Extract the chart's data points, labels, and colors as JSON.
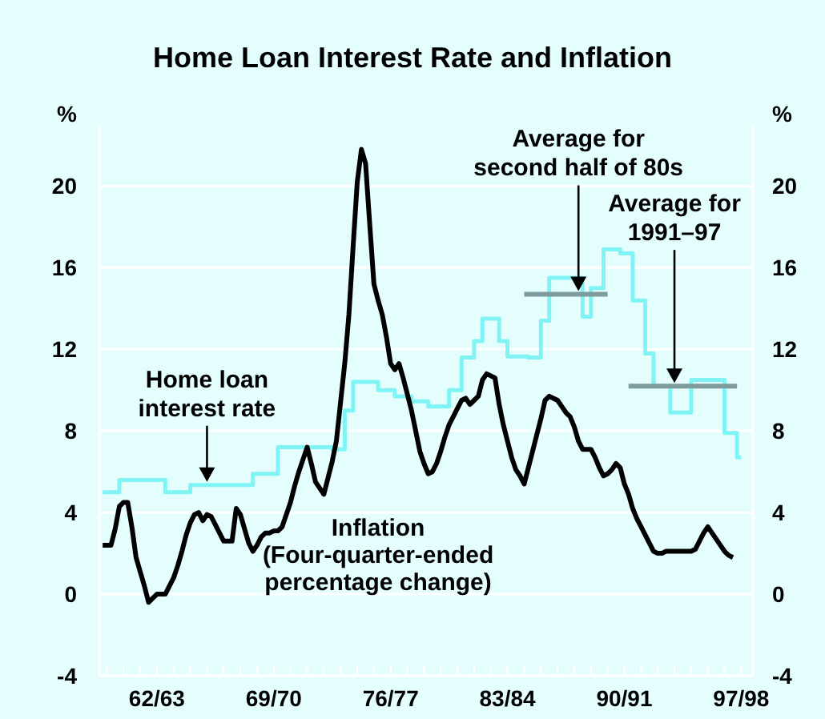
{
  "chart_data": {
    "type": "line",
    "title": "Home Loan Interest Rate and Inflation",
    "ylabel": "%",
    "y2label": "%",
    "categories": [
      null,
      null,
      null,
      null,
      null,
      null,
      null,
      null,
      null,
      null,
      null,
      null,
      null,
      "62/63",
      null,
      null,
      null,
      null,
      null,
      null,
      null,
      null,
      null,
      null,
      null,
      null,
      null,
      null,
      null,
      null,
      null,
      null,
      null,
      null,
      null,
      null,
      null,
      null,
      null,
      null,
      null,
      "69/70",
      null,
      null,
      null,
      null,
      null,
      null,
      null,
      null,
      null,
      null,
      null,
      null,
      null,
      null,
      null,
      null,
      null,
      null,
      null,
      null,
      null,
      null,
      null,
      null,
      null,
      null,
      null,
      "76/77",
      null,
      null,
      null,
      null,
      null,
      null,
      null,
      null,
      null,
      null,
      null,
      null,
      null,
      null,
      null,
      null,
      null,
      null,
      null,
      null,
      null,
      null,
      null,
      null,
      null,
      null,
      null,
      "83/84",
      null,
      null,
      null,
      null,
      null,
      null,
      null,
      null,
      null,
      null,
      null,
      null,
      null,
      null,
      null,
      null,
      null,
      null,
      null,
      null,
      null,
      null,
      null,
      null,
      null,
      null,
      null,
      "90/91",
      null,
      null,
      null,
      null,
      null,
      null,
      null,
      null,
      null,
      null,
      null,
      null,
      null,
      null,
      null,
      null,
      null,
      null,
      null,
      null,
      null,
      null,
      null,
      null,
      null,
      null,
      null,
      "97/98"
    ],
    "ylim": [
      -4,
      23
    ],
    "y2lim": [
      -4,
      23
    ],
    "yticks": [
      -4,
      0,
      4,
      8,
      12,
      16,
      20
    ],
    "y2ticks": [
      -4,
      0,
      4,
      8,
      12,
      16,
      20
    ],
    "grid": "y",
    "marker": "none",
    "line_style": "solid",
    "series": [
      {
        "color": "#80f4f4",
        "type": "step",
        "values": [
          5.0,
          5.0,
          5.0,
          5.0,
          5.6,
          5.6,
          5.6,
          5.6,
          5.6,
          5.6,
          5.6,
          5.6,
          5.6,
          5.6,
          5.6,
          5.0,
          5.0,
          5.0,
          5.0,
          5.0,
          5.0,
          5.35,
          5.35,
          5.35,
          5.35,
          5.35,
          5.35,
          5.35,
          5.35,
          5.35,
          5.35,
          5.35,
          5.35,
          5.35,
          5.35,
          5.35,
          5.9,
          5.9,
          5.9,
          5.9,
          5.9,
          5.9,
          7.2,
          7.2,
          7.2,
          7.2,
          7.2,
          7.2,
          7.2,
          7.2,
          7.2,
          7.2,
          7.2,
          7.2,
          7.2,
          7.1,
          7.1,
          7.1,
          9.0,
          9.0,
          10.4,
          10.4,
          10.4,
          10.4,
          10.4,
          10.4,
          10.0,
          10.0,
          10.0,
          10.0,
          9.7,
          9.7,
          9.7,
          9.7,
          9.45,
          9.45,
          9.45,
          9.45,
          9.2,
          9.2,
          9.2,
          9.2,
          9.2,
          10.0,
          10.0,
          10.0,
          11.6,
          11.6,
          11.6,
          12.4,
          12.4,
          13.5,
          13.5,
          13.5,
          13.5,
          12.4,
          12.4,
          11.65,
          11.65,
          11.65,
          11.65,
          11.65,
          11.6,
          11.6,
          11.6,
          13.4,
          13.4,
          15.5,
          15.5,
          15.5,
          15.5,
          15.5,
          15.5,
          15.5,
          15.5,
          13.6,
          13.6,
          15.0,
          15.0,
          15.0,
          16.9,
          16.9,
          16.9,
          16.9,
          16.7,
          16.7,
          16.7,
          14.4,
          14.4,
          14.4,
          11.8,
          11.8,
          10.2,
          10.2,
          10.2,
          10.2,
          8.9,
          8.9,
          8.9,
          8.9,
          8.9,
          10.5,
          10.5,
          10.5,
          10.5,
          10.5,
          10.5,
          10.5,
          10.5,
          7.9,
          7.9,
          7.9,
          6.7,
          6.7
        ]
      },
      {
        "color": "#000000",
        "values": [
          2.4,
          2.4,
          2.4,
          3.2,
          4.3,
          4.5,
          4.5,
          3.3,
          1.8,
          1.1,
          0.4,
          -0.4,
          -0.2,
          0,
          0,
          0,
          0.4,
          0.8,
          1.4,
          2.1,
          2.9,
          3.5,
          3.9,
          4.0,
          3.6,
          3.9,
          3.8,
          3.4,
          3.0,
          2.6,
          2.6,
          2.6,
          4.2,
          3.9,
          3.2,
          2.5,
          2.1,
          2.4,
          2.8,
          3.0,
          3.0,
          3.1,
          3.1,
          3.3,
          3.9,
          4.5,
          5.3,
          6.0,
          6.6,
          7.2,
          6.4,
          5.5,
          5.2,
          4.9,
          5.7,
          6.5,
          7.5,
          9.4,
          11.3,
          13.7,
          17.0,
          20.2,
          21.8,
          21.1,
          18.1,
          15.2,
          14.4,
          13.7,
          12.6,
          11.3,
          11.0,
          11.3,
          10.6,
          9.8,
          9.0,
          8.0,
          7.0,
          6.4,
          5.9,
          6.0,
          6.4,
          7.0,
          7.7,
          8.3,
          8.7,
          9.1,
          9.5,
          9.6,
          9.3,
          9.5,
          9.7,
          10.5,
          10.8,
          10.7,
          10.6,
          9.3,
          8.3,
          7.5,
          6.7,
          6.1,
          5.8,
          5.4,
          6.2,
          7.0,
          7.8,
          8.6,
          9.5,
          9.7,
          9.6,
          9.5,
          9.2,
          8.9,
          8.7,
          8.2,
          7.5,
          7.1,
          7.1,
          7.1,
          6.7,
          6.2,
          5.8,
          5.9,
          6.1,
          6.4,
          6.2,
          5.4,
          4.9,
          4.2,
          3.7,
          3.3,
          2.9,
          2.5,
          2.1,
          2.0,
          2.0,
          2.1,
          2.1,
          2.1,
          2.1,
          2.1,
          2.1,
          2.1,
          2.2,
          2.6,
          3.0,
          3.3,
          3.0,
          2.7,
          2.4,
          2.1,
          1.9,
          1.8,
          null,
          null
        ]
      },
      {
        "color": "#7f9c9c",
        "values": [
          null,
          null,
          null,
          null,
          null,
          null,
          null,
          null,
          null,
          null,
          null,
          null,
          null,
          null,
          null,
          null,
          null,
          null,
          null,
          null,
          null,
          null,
          null,
          null,
          null,
          null,
          null,
          null,
          null,
          null,
          null,
          null,
          null,
          null,
          null,
          null,
          null,
          null,
          null,
          null,
          null,
          null,
          null,
          null,
          null,
          null,
          null,
          null,
          null,
          null,
          null,
          null,
          null,
          null,
          null,
          null,
          null,
          null,
          null,
          null,
          null,
          null,
          null,
          null,
          null,
          null,
          null,
          null,
          null,
          null,
          null,
          null,
          null,
          null,
          null,
          null,
          null,
          null,
          null,
          null,
          null,
          null,
          null,
          null,
          null,
          null,
          null,
          null,
          null,
          null,
          null,
          null,
          null,
          null,
          null,
          null,
          null,
          null,
          null,
          null,
          null,
          14.7,
          14.7,
          14.7,
          14.7,
          14.7,
          14.7,
          14.7,
          14.7,
          14.7,
          14.7,
          14.7,
          14.7,
          14.7,
          14.7,
          14.7,
          14.7,
          14.7,
          14.7,
          14.7,
          14.7,
          14.7,
          null,
          null,
          null,
          null,
          null,
          null,
          null,
          null,
          null,
          null,
          null,
          null,
          null,
          null,
          null,
          null,
          null,
          null,
          null,
          null,
          null,
          null,
          null,
          null,
          null,
          null,
          null,
          null,
          null,
          null,
          null,
          null
        ]
      },
      {
        "color": "#7f9c9c",
        "values": [
          null,
          null,
          null,
          null,
          null,
          null,
          null,
          null,
          null,
          null,
          null,
          null,
          null,
          null,
          null,
          null,
          null,
          null,
          null,
          null,
          null,
          null,
          null,
          null,
          null,
          null,
          null,
          null,
          null,
          null,
          null,
          null,
          null,
          null,
          null,
          null,
          null,
          null,
          null,
          null,
          null,
          null,
          null,
          null,
          null,
          null,
          null,
          null,
          null,
          null,
          null,
          null,
          null,
          null,
          null,
          null,
          null,
          null,
          null,
          null,
          null,
          null,
          null,
          null,
          null,
          null,
          null,
          null,
          null,
          null,
          null,
          null,
          null,
          null,
          null,
          null,
          null,
          null,
          null,
          null,
          null,
          null,
          null,
          null,
          null,
          null,
          null,
          null,
          null,
          null,
          null,
          null,
          null,
          null,
          null,
          null,
          null,
          null,
          null,
          null,
          null,
          null,
          null,
          null,
          null,
          null,
          null,
          null,
          null,
          null,
          null,
          null,
          null,
          null,
          null,
          null,
          null,
          null,
          null,
          null,
          null,
          null,
          null,
          null,
          null,
          null,
          10.2,
          10.2,
          10.2,
          10.2,
          10.2,
          10.2,
          10.2,
          10.2,
          10.2,
          10.2,
          10.2,
          10.2,
          10.2,
          10.2,
          10.2,
          10.2,
          10.2,
          10.2,
          10.2,
          10.2,
          10.2,
          10.2,
          10.2,
          10.2,
          10.2,
          10.2,
          10.2,
          null
        ]
      }
    ],
    "annotations": [
      {
        "text": "Home loan\ninterest rate",
        "y": 5.35
      },
      {
        "text": "Average for\nsecond half of 80s",
        "y": 14.7
      },
      "Average for\n1991–97",
      "Inflation\n(Four-quarter-ended\npercentage change)"
    ]
  }
}
